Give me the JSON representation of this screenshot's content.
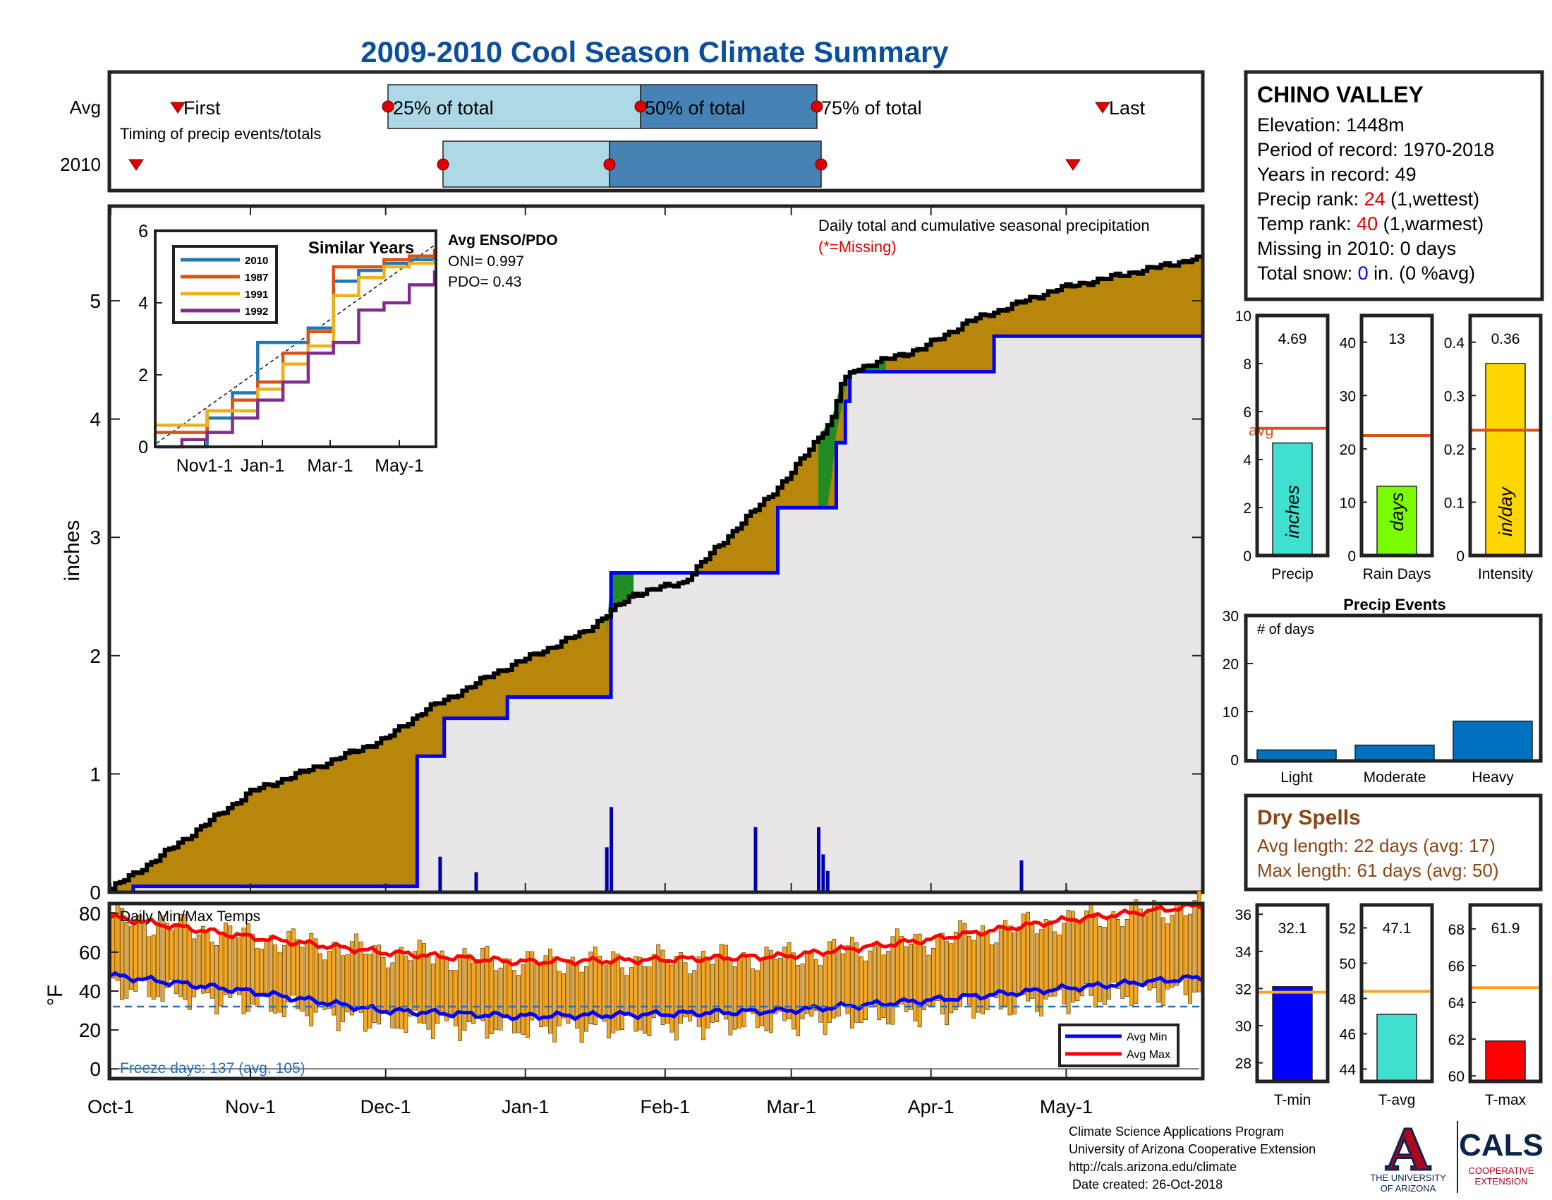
{
  "header": {
    "title": "2009-2010 Cool Season Climate Summary"
  },
  "timing_panel": {
    "row_labels": [
      "Avg",
      "2010"
    ],
    "subtitle": "Timing of precip events/totals",
    "markers": [
      "First",
      "25% of total",
      "50% of total",
      "75% of total",
      "Last"
    ]
  },
  "station": {
    "name": "CHINO VALLEY",
    "elevation": "Elevation: 1448m",
    "period": "Period of record: 1970-2018",
    "years": "Years in record: 49",
    "precip_rank_prefix": "Precip rank: ",
    "precip_rank_value": "24",
    "precip_rank_suffix": " (1,wettest)",
    "temp_rank_prefix": "Temp rank: ",
    "temp_rank_value": "40",
    "temp_rank_suffix": " (1,warmest)",
    "missing": "Missing in 2010: 0 days",
    "snow_prefix": "Total snow: ",
    "snow_value": "0",
    "snow_suffix": " in. (0 %avg)"
  },
  "main_panel": {
    "note": "Daily total and cumulative seasonal precipitation",
    "missing_note": "(*=Missing)",
    "ylabel": "inches",
    "enso_title": "Avg ENSO/PDO",
    "oni": "ONI= 0.997",
    "pdo": "PDO= 0.43"
  },
  "inset": {
    "title": "Similar Years",
    "x_ticks": [
      "Nov1-1",
      "Jan-1",
      "Mar-1",
      "May-1"
    ],
    "y_ticks": [
      "0",
      "2",
      "4",
      "6"
    ],
    "legend": [
      "2010",
      "1987",
      "1991",
      "1992"
    ]
  },
  "temp_panel": {
    "title": "Daily Min/Max Temps",
    "ylabel": "°F",
    "freeze_text": "Freeze days: 137 (avg. 105)",
    "legend": [
      "Avg Min",
      "Avg Max"
    ]
  },
  "x_axis": {
    "ticks": [
      "Oct-1",
      "Nov-1",
      "Dec-1",
      "Jan-1",
      "Feb-1",
      "Mar-1",
      "Apr-1",
      "May-1"
    ]
  },
  "precip_events": {
    "title": "Precip Events",
    "note": "# of days"
  },
  "dry_spells": {
    "title": "Dry Spells",
    "avg_length": "Avg length: 22 days (avg: 17)",
    "max_length": "Max length: 61 days (avg: 50)"
  },
  "footer": {
    "line1": "Climate Science Applications Program",
    "line2": "University of Arizona Cooperative Extension",
    "line3": "http://cals.arizona.edu/climate",
    "line4": "Date created: 26-Oct-2018",
    "ua_line1": "THE UNIVERSITY",
    "ua_line2": "OF ARIZONA",
    "cals": "CALS",
    "coop1": "COOPERATIVE",
    "coop2": "EXTENSION"
  },
  "colors": {
    "title_blue": "#0b4f9c",
    "light_blue": "#add8e6",
    "steel_blue": "#4682b4",
    "observed_fill": "#b8860b",
    "deficit_fill": "#228b22",
    "avg_line": "#0000ff",
    "inset_2010": "#1f77b4",
    "inset_1987": "#d95319",
    "inset_1991": "#edb120",
    "inset_1992": "#7e2f8e",
    "temp_bars": "#f5a623",
    "avg_min": "#0000ff",
    "avg_max": "#ff0000",
    "rank_red": "#e00000",
    "dry_brown": "#8b4513",
    "freeze_blue": "#1f6fbf",
    "ua_navy": "#0c234b",
    "ua_red": "#ab0520"
  },
  "chart_data": [
    {
      "type": "line",
      "title": "Daily total and cumulative seasonal precipitation",
      "ylabel": "inches",
      "xlim": [
        "Oct-1",
        "May-31"
      ],
      "ylim": [
        0,
        5.8
      ],
      "x_ticks": [
        "Oct-1",
        "Nov-1",
        "Dec-1",
        "Jan-1",
        "Feb-1",
        "Mar-1",
        "Apr-1",
        "May-1"
      ],
      "series": [
        {
          "x_day_of_season": [
            0,
            10,
            20,
            31,
            45,
            61,
            70,
            74,
            85,
            105,
            116,
            127,
            134,
            150,
            160,
            162,
            165,
            180,
            190,
            210,
            240
          ],
          "values": [
            0.03,
            0.28,
            0.55,
            0.85,
            1.05,
            1.3,
            1.55,
            1.62,
            1.85,
            2.2,
            2.52,
            2.62,
            2.9,
            3.5,
            4.0,
            4.3,
            4.42,
            4.6,
            4.82,
            5.1,
            5.35
          ]
        },
        {
          "x_day_of_season": [
            0,
            5,
            67,
            68,
            74,
            78,
            88,
            110,
            111,
            128,
            148,
            160,
            161,
            163,
            164,
            195,
            196,
            240
          ],
          "values": [
            0.0,
            0.05,
            0.05,
            1.15,
            1.47,
            1.47,
            1.65,
            1.65,
            2.7,
            2.7,
            3.25,
            3.25,
            3.8,
            4.15,
            4.4,
            4.4,
            4.7,
            4.7
          ]
        },
        {
          "x_day_of_season": [
            73,
            81,
            110,
            111,
            143,
            157,
            158,
            159,
            202,
            212
          ],
          "values": [
            0.3,
            0.17,
            0.38,
            0.72,
            0.55,
            0.55,
            0.32,
            0.18,
            0.27,
            0.02
          ]
        }
      ]
    },
    {
      "type": "line",
      "title": "Similar Years",
      "ylim": [
        0,
        6
      ],
      "x_ticks": [
        "Nov1-1",
        "Jan-1",
        "Mar-1",
        "May-1"
      ],
      "series": [
        {
          "name": "2010",
          "values": [
            0.0,
            0.0,
            0.8,
            1.5,
            2.9,
            2.9,
            3.3,
            4.6,
            4.9,
            5.1,
            5.2,
            5.3
          ]
        },
        {
          "name": "1987",
          "values": [
            0.4,
            0.4,
            1.0,
            1.3,
            1.8,
            2.6,
            3.2,
            5.0,
            5.0,
            5.2,
            5.3,
            5.5
          ]
        },
        {
          "name": "1991",
          "values": [
            0.6,
            0.6,
            1.0,
            1.0,
            1.6,
            2.3,
            2.8,
            4.2,
            4.7,
            5.0,
            5.1,
            5.2
          ]
        },
        {
          "name": "1992",
          "values": [
            0.0,
            0.2,
            0.4,
            0.8,
            1.3,
            1.8,
            2.6,
            2.9,
            3.8,
            4.0,
            4.5,
            4.9
          ]
        }
      ]
    },
    {
      "type": "bar",
      "title": "Daily Min/Max Temps",
      "ylabel": "°F",
      "ylim": [
        -5,
        85
      ],
      "x_ticks": [
        "Oct-1",
        "Nov-1",
        "Dec-1",
        "Jan-1",
        "Feb-1",
        "Mar-1",
        "Apr-1",
        "May-1"
      ],
      "freeze_threshold": 32,
      "series": [
        {
          "name": "Avg Min",
          "x_day_of_season": [
            0,
            30,
            60,
            90,
            120,
            150,
            180,
            210,
            242
          ],
          "values": [
            48,
            40,
            30,
            27,
            28,
            30,
            35,
            41,
            47
          ]
        },
        {
          "name": "Avg Max",
          "x_day_of_season": [
            0,
            30,
            60,
            90,
            120,
            150,
            180,
            210,
            242
          ],
          "values": [
            78,
            68,
            60,
            55,
            56,
            58,
            66,
            76,
            84
          ]
        }
      ]
    },
    {
      "type": "bar",
      "categories": [
        "Precip"
      ],
      "values": [
        4.69
      ],
      "avg": 5.3,
      "ylim": [
        0,
        10
      ],
      "y_ticks": [
        "0",
        "2",
        "4",
        "6",
        "8",
        "10"
      ],
      "label": "4.69",
      "bar_text": "inches",
      "avg_label": "avg"
    },
    {
      "type": "bar",
      "categories": [
        "Rain Days"
      ],
      "values": [
        13
      ],
      "avg": 22.5,
      "ylim": [
        0,
        45
      ],
      "y_ticks": [
        "0",
        "10",
        "20",
        "30",
        "40"
      ],
      "label": "13",
      "bar_text": "days"
    },
    {
      "type": "bar",
      "categories": [
        "Intensity"
      ],
      "values": [
        0.36
      ],
      "avg": 0.235,
      "ylim": [
        0,
        0.45
      ],
      "y_ticks": [
        "0",
        "0.1",
        "0.2",
        "0.3",
        "0.4"
      ],
      "label": "0.36",
      "bar_text": "in/day"
    },
    {
      "type": "bar",
      "title": "Precip Events",
      "categories": [
        "Light",
        "Moderate",
        "Heavy"
      ],
      "values": [
        2,
        3,
        8
      ],
      "ylim": [
        0,
        30
      ],
      "y_ticks": [
        "0",
        "10",
        "20",
        "30"
      ]
    },
    {
      "type": "bar",
      "categories": [
        "T-min"
      ],
      "values": [
        32.1
      ],
      "avg": 31.8,
      "ylim": [
        27,
        36.5
      ],
      "y_ticks": [
        "28",
        "30",
        "32",
        "34",
        "36"
      ],
      "label": "32.1"
    },
    {
      "type": "bar",
      "categories": [
        "T-avg"
      ],
      "values": [
        47.1
      ],
      "avg": 48.4,
      "ylim": [
        43.3,
        53.3
      ],
      "y_ticks": [
        "44",
        "46",
        "48",
        "50",
        "52"
      ],
      "label": "47.1"
    },
    {
      "type": "bar",
      "categories": [
        "T-max"
      ],
      "values": [
        61.9
      ],
      "avg": 64.8,
      "ylim": [
        59.7,
        69.3
      ],
      "y_ticks": [
        "60",
        "62",
        "64",
        "66",
        "68"
      ],
      "label": "61.9"
    }
  ]
}
